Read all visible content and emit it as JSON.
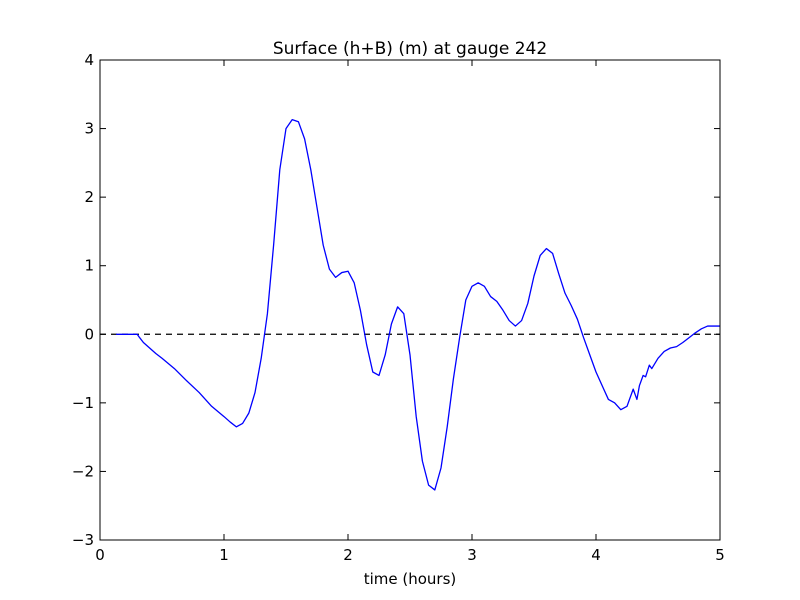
{
  "chart_data": {
    "type": "line",
    "title": "Surface (h+B) (m) at gauge 242",
    "xlabel": "time (hours)",
    "ylabel": "",
    "xlim": [
      0,
      5
    ],
    "ylim": [
      -3,
      4
    ],
    "xticks": [
      0,
      1,
      2,
      3,
      4,
      5
    ],
    "xtick_labels": [
      "0",
      "1",
      "2",
      "3",
      "4",
      "5"
    ],
    "yticks": [
      -3,
      -2,
      -1,
      0,
      1,
      2,
      3,
      4
    ],
    "ytick_labels": [
      "−3",
      "−2",
      "−1",
      "0",
      "1",
      "2",
      "3",
      "4"
    ],
    "grid": false,
    "reference_line": {
      "y": 0,
      "style": "dashed",
      "color": "#000000"
    },
    "series": [
      {
        "color": "#0000ff",
        "x": [
          0.13,
          0.3,
          0.32,
          0.35,
          0.4,
          0.45,
          0.5,
          0.6,
          0.7,
          0.8,
          0.9,
          1.0,
          1.05,
          1.1,
          1.15,
          1.2,
          1.25,
          1.3,
          1.35,
          1.4,
          1.45,
          1.5,
          1.55,
          1.6,
          1.65,
          1.7,
          1.75,
          1.8,
          1.85,
          1.9,
          1.95,
          2.0,
          2.05,
          2.1,
          2.15,
          2.2,
          2.25,
          2.3,
          2.35,
          2.4,
          2.45,
          2.5,
          2.55,
          2.6,
          2.65,
          2.7,
          2.75,
          2.8,
          2.85,
          2.9,
          2.95,
          3.0,
          3.05,
          3.1,
          3.15,
          3.2,
          3.25,
          3.3,
          3.35,
          3.4,
          3.45,
          3.5,
          3.55,
          3.6,
          3.65,
          3.7,
          3.75,
          3.8,
          3.85,
          3.9,
          3.95,
          4.0,
          4.05,
          4.1,
          4.15,
          4.2,
          4.25,
          4.3,
          4.33,
          4.35,
          4.38,
          4.4,
          4.43,
          4.45,
          4.5,
          4.55,
          4.6,
          4.65,
          4.7,
          4.75,
          4.8,
          4.85,
          4.9,
          4.95,
          5.0
        ],
        "y": [
          0.0,
          0.0,
          -0.05,
          -0.12,
          -0.2,
          -0.28,
          -0.35,
          -0.5,
          -0.68,
          -0.85,
          -1.05,
          -1.2,
          -1.28,
          -1.35,
          -1.3,
          -1.15,
          -0.85,
          -0.35,
          0.3,
          1.3,
          2.4,
          3.0,
          3.13,
          3.1,
          2.85,
          2.4,
          1.85,
          1.3,
          0.95,
          0.83,
          0.9,
          0.92,
          0.75,
          0.35,
          -0.15,
          -0.55,
          -0.6,
          -0.3,
          0.15,
          0.4,
          0.3,
          -0.3,
          -1.2,
          -1.85,
          -2.2,
          -2.27,
          -1.95,
          -1.35,
          -0.65,
          -0.05,
          0.5,
          0.7,
          0.75,
          0.7,
          0.55,
          0.48,
          0.35,
          0.2,
          0.12,
          0.2,
          0.45,
          0.85,
          1.15,
          1.25,
          1.18,
          0.88,
          0.6,
          0.42,
          0.22,
          -0.05,
          -0.3,
          -0.55,
          -0.75,
          -0.95,
          -1.0,
          -1.1,
          -1.05,
          -0.8,
          -0.95,
          -0.75,
          -0.6,
          -0.62,
          -0.45,
          -0.5,
          -0.35,
          -0.25,
          -0.2,
          -0.18,
          -0.12,
          -0.05,
          0.02,
          0.08,
          0.12,
          0.12,
          0.12
        ]
      }
    ]
  }
}
